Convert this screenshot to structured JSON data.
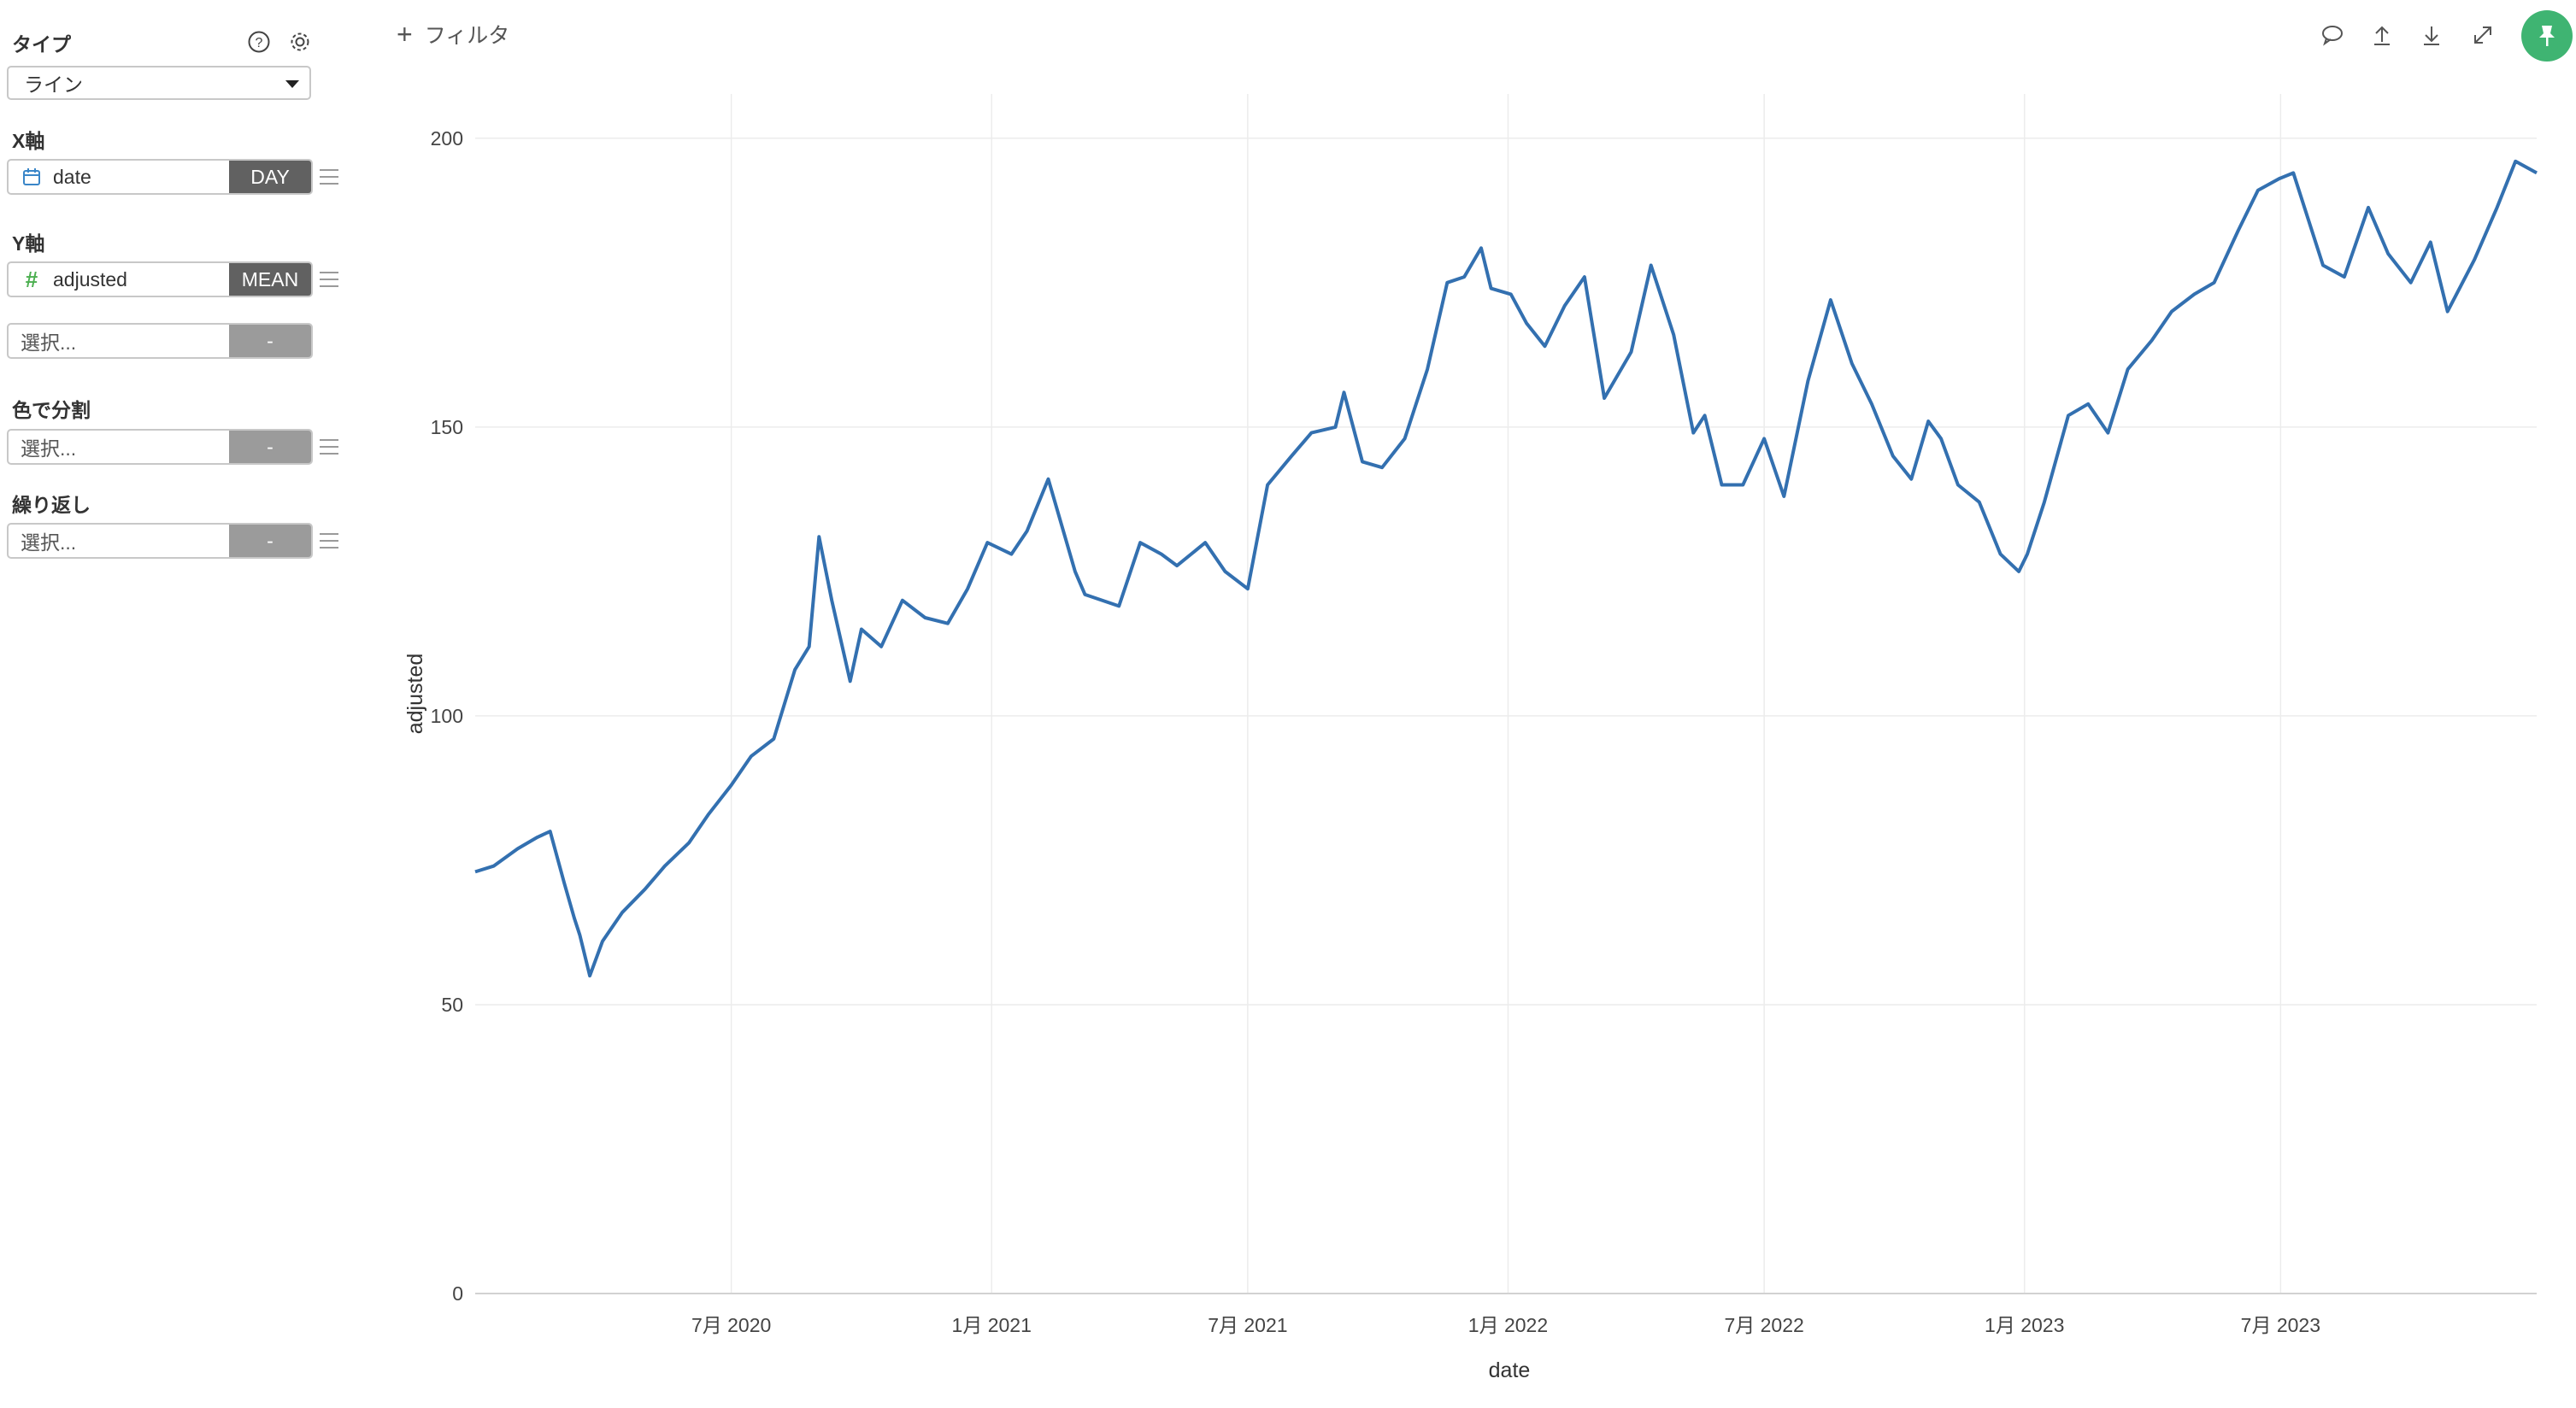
{
  "sidebar": {
    "type_label": "タイプ",
    "type_value": "ライン",
    "x_label": "X軸",
    "x_field": {
      "name": "date",
      "agg": "DAY",
      "icon": "calendar-icon"
    },
    "y_label": "Y軸",
    "y_field": {
      "name": "adjusted",
      "agg": "MEAN",
      "icon": "hash-icon"
    },
    "y_extra": {
      "placeholder": "選択...",
      "agg": "-"
    },
    "color_label": "色で分割",
    "color_field": {
      "placeholder": "選択...",
      "agg": "-"
    },
    "repeat_label": "繰り返し",
    "repeat_field": {
      "placeholder": "選択...",
      "agg": "-"
    }
  },
  "toolbar": {
    "filter_label": "フィルタ",
    "icons": [
      "comment-icon",
      "upload-icon",
      "download-icon",
      "expand-icon",
      "pin-icon"
    ]
  },
  "colors": {
    "line": "#3370b0",
    "accent": "#3fb472",
    "agg_bg": "#616161"
  },
  "chart_data": {
    "type": "line",
    "xlabel": "date",
    "ylabel": "adjusted",
    "ylim": [
      0,
      205
    ],
    "xlim": [
      "2020-01-02",
      "2023-12-29"
    ],
    "yticks": [
      0,
      50,
      100,
      150,
      200
    ],
    "xticks": [
      {
        "date": "2020-07-01",
        "label": "7月 2020"
      },
      {
        "date": "2021-01-01",
        "label": "1月 2021"
      },
      {
        "date": "2021-07-01",
        "label": "7月 2021"
      },
      {
        "date": "2022-01-01",
        "label": "1月 2022"
      },
      {
        "date": "2022-07-01",
        "label": "7月 2022"
      },
      {
        "date": "2023-01-01",
        "label": "1月 2023"
      },
      {
        "date": "2023-07-01",
        "label": "7月 2023"
      }
    ],
    "grid": true,
    "series": [
      {
        "x": [
          "2020-01-02",
          "2020-01-15",
          "2020-02-01",
          "2020-02-15",
          "2020-02-24",
          "2020-03-05",
          "2020-03-12",
          "2020-03-16",
          "2020-03-23",
          "2020-04-01",
          "2020-04-15",
          "2020-05-01",
          "2020-05-15",
          "2020-06-01",
          "2020-06-15",
          "2020-07-01",
          "2020-07-15",
          "2020-07-31",
          "2020-08-15",
          "2020-08-25",
          "2020-09-01",
          "2020-09-10",
          "2020-09-23",
          "2020-10-01",
          "2020-10-15",
          "2020-10-30",
          "2020-11-15",
          "2020-12-01",
          "2020-12-15",
          "2020-12-29",
          "2021-01-15",
          "2021-01-26",
          "2021-02-10",
          "2021-03-01",
          "2021-03-08",
          "2021-04-01",
          "2021-04-16",
          "2021-05-01",
          "2021-05-12",
          "2021-06-01",
          "2021-06-15",
          "2021-07-01",
          "2021-07-15",
          "2021-08-01",
          "2021-08-15",
          "2021-09-01",
          "2021-09-07",
          "2021-09-20",
          "2021-10-04",
          "2021-10-20",
          "2021-11-05",
          "2021-11-19",
          "2021-12-01",
          "2021-12-13",
          "2021-12-20",
          "2022-01-03",
          "2022-01-14",
          "2022-01-27",
          "2022-02-10",
          "2022-02-24",
          "2022-03-10",
          "2022-03-29",
          "2022-04-12",
          "2022-04-28",
          "2022-05-12",
          "2022-05-20",
          "2022-06-01",
          "2022-06-16",
          "2022-07-01",
          "2022-07-15",
          "2022-08-01",
          "2022-08-17",
          "2022-09-01",
          "2022-09-15",
          "2022-09-30",
          "2022-10-13",
          "2022-10-25",
          "2022-11-03",
          "2022-11-15",
          "2022-11-30",
          "2022-12-15",
          "2022-12-28",
          "2023-01-03",
          "2023-01-15",
          "2023-02-01",
          "2023-02-15",
          "2023-03-01",
          "2023-03-15",
          "2023-04-01",
          "2023-04-15",
          "2023-05-01",
          "2023-05-15",
          "2023-06-01",
          "2023-06-15",
          "2023-06-30",
          "2023-07-10",
          "2023-07-31",
          "2023-08-15",
          "2023-09-01",
          "2023-09-15",
          "2023-10-01",
          "2023-10-15",
          "2023-10-27",
          "2023-11-15",
          "2023-12-01",
          "2023-12-14",
          "2023-12-29"
        ],
        "y": [
          73,
          74,
          77,
          79,
          80,
          71,
          65,
          62,
          55,
          61,
          66,
          70,
          74,
          78,
          83,
          88,
          93,
          96,
          108,
          112,
          131,
          120,
          106,
          115,
          112,
          120,
          117,
          116,
          122,
          130,
          128,
          132,
          141,
          125,
          121,
          119,
          130,
          128,
          126,
          130,
          125,
          122,
          140,
          145,
          149,
          150,
          156,
          144,
          143,
          148,
          160,
          175,
          176,
          181,
          174,
          173,
          168,
          164,
          171,
          176,
          155,
          163,
          178,
          166,
          149,
          152,
          140,
          140,
          148,
          138,
          158,
          172,
          161,
          154,
          145,
          141,
          151,
          148,
          140,
          137,
          128,
          125,
          128,
          137,
          152,
          154,
          149,
          160,
          165,
          170,
          173,
          175,
          184,
          191,
          193,
          194,
          178,
          176,
          188,
          180,
          175,
          182,
          170,
          179,
          188,
          196,
          194
        ]
      }
    ]
  }
}
